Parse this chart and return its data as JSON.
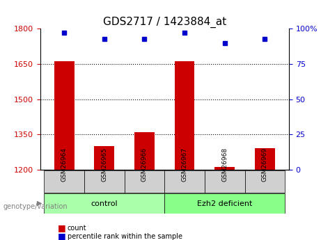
{
  "title": "GDS2717 / 1423884_at",
  "samples": [
    "GSM26964",
    "GSM26965",
    "GSM26966",
    "GSM26967",
    "GSM26968",
    "GSM26969"
  ],
  "bar_values": [
    1662,
    1300,
    1360,
    1662,
    1210,
    1290
  ],
  "percentile_values": [
    97,
    93,
    93,
    97,
    90,
    93
  ],
  "bar_color": "#cc0000",
  "dot_color": "#0000cc",
  "ylim_left": [
    1200,
    1800
  ],
  "ylim_right": [
    0,
    100
  ],
  "yticks_left": [
    1200,
    1350,
    1500,
    1650,
    1800
  ],
  "yticks_right": [
    0,
    25,
    50,
    75,
    100
  ],
  "grid_values": [
    1350,
    1500,
    1650
  ],
  "groups": [
    {
      "label": "control",
      "indices": [
        0,
        1,
        2
      ],
      "color": "#aaffaa"
    },
    {
      "label": "Ezh2 deficient",
      "indices": [
        3,
        4,
        5
      ],
      "color": "#88ff88"
    }
  ],
  "bar_width": 0.5,
  "group_label": "genotype/variation",
  "legend_count_label": "count",
  "legend_pct_label": "percentile rank within the sample",
  "bg_color": "#ffffff",
  "plot_bg_color": "#ffffff",
  "tick_label_color_left": "#cc0000",
  "tick_label_color_right": "#0000cc",
  "baseline": 1200
}
